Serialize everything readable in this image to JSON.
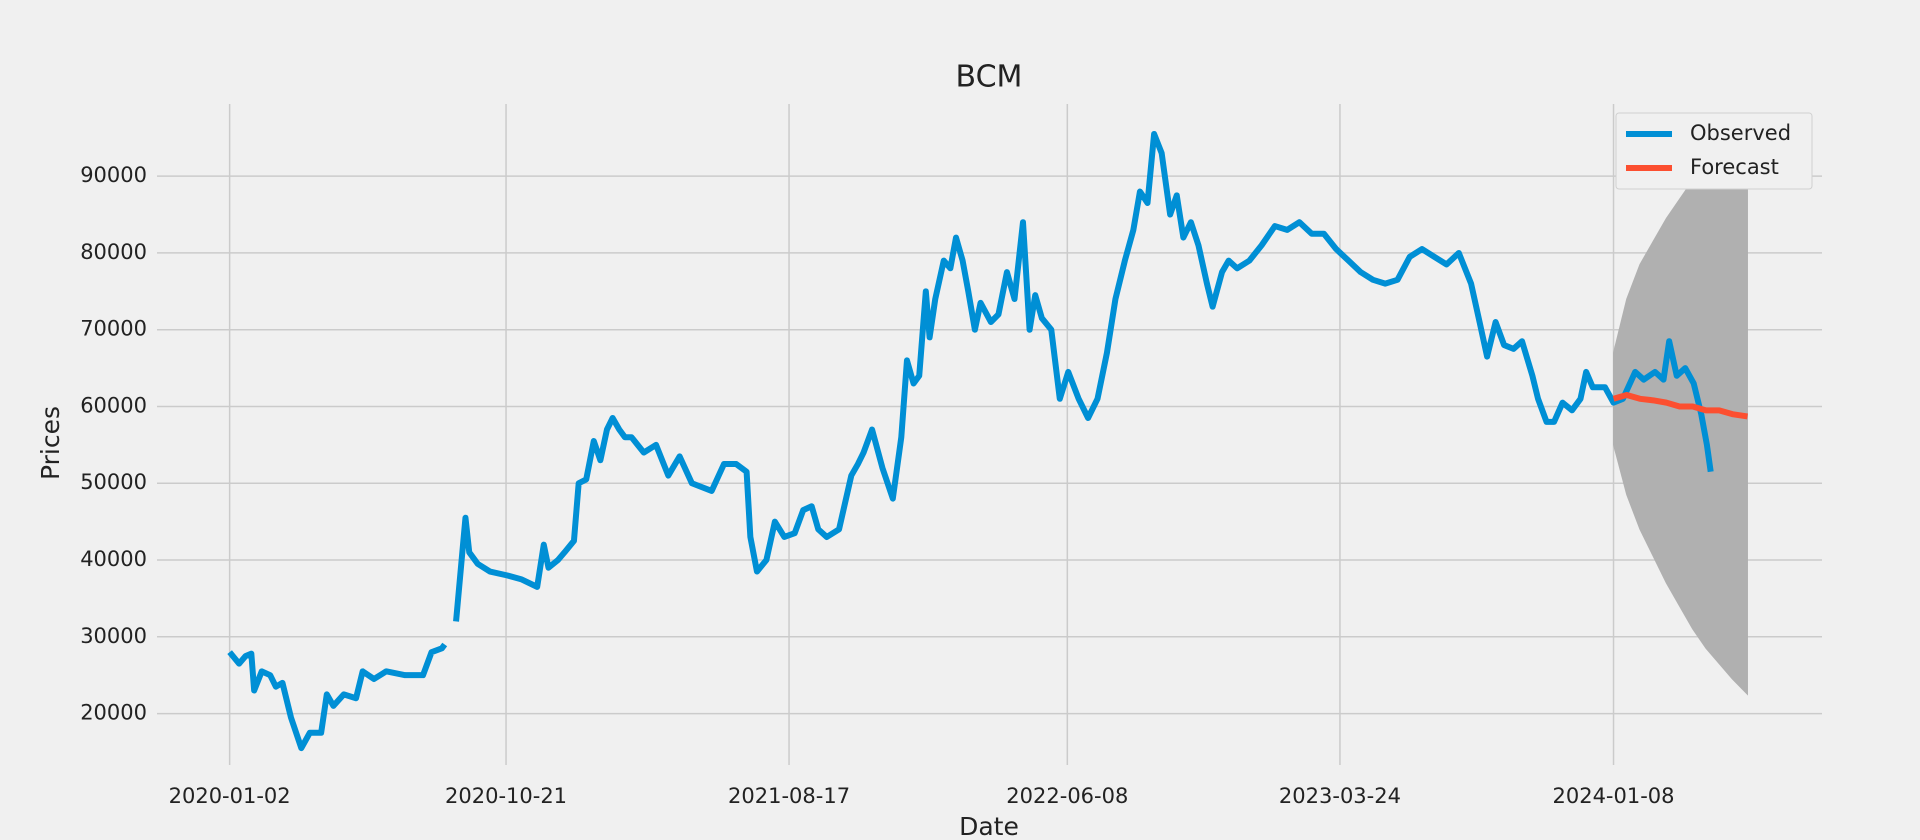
{
  "chart_data": {
    "type": "line",
    "title": "BCM",
    "x_label": "Date",
    "y_label": "Prices",
    "xlim": [
      "2019-10-17",
      "2024-08-16"
    ],
    "ylim": [
      13300,
      99400
    ],
    "xticks": [
      "2020-01-02",
      "2020-10-21",
      "2021-08-17",
      "2022-06-08",
      "2023-03-24",
      "2024-01-08"
    ],
    "yticks": [
      20000,
      30000,
      40000,
      50000,
      60000,
      70000,
      80000,
      90000
    ],
    "grid": true,
    "legend": "upper right",
    "series": [
      {
        "name": "Observed",
        "color": "#008fd5",
        "x": [
          "2020-01-02",
          "2020-01-12",
          "2020-01-19",
          "2020-01-25",
          "2020-01-28",
          "2020-02-05",
          "2020-02-14",
          "2020-02-20",
          "2020-02-27",
          "2020-03-07",
          "2020-03-18",
          "2020-03-27",
          "2020-04-08",
          "2020-04-14",
          "2020-04-21",
          "2020-05-02",
          "2020-05-15",
          "2020-05-22",
          "2020-06-03",
          "2020-06-16",
          "2020-07-06",
          "2020-07-25",
          "2020-08-03",
          "2020-08-14",
          "2020-08-17",
          "2020-08-22",
          "2020-08-29",
          "2020-09-08",
          "2020-09-12",
          "2020-09-21",
          "2020-10-04",
          "2020-10-22",
          "2020-11-06",
          "2020-11-23",
          "2020-11-30",
          "2020-12-05",
          "2020-12-15",
          "2020-12-22",
          "2021-01-01",
          "2021-01-06",
          "2021-01-14",
          "2021-01-22",
          "2021-01-29",
          "2021-02-05",
          "2021-02-11",
          "2021-02-18",
          "2021-02-24",
          "2021-03-03",
          "2021-03-16",
          "2021-03-29",
          "2021-04-11",
          "2021-04-23",
          "2021-05-06",
          "2021-05-27",
          "2021-06-09",
          "2021-06-22",
          "2021-07-03",
          "2021-07-07",
          "2021-07-14",
          "2021-07-24",
          "2021-08-02",
          "2021-08-12",
          "2021-08-23",
          "2021-09-01",
          "2021-09-10",
          "2021-09-17",
          "2021-09-26",
          "2021-10-09",
          "2021-10-22",
          "2021-10-29",
          "2021-11-04",
          "2021-11-13",
          "2021-11-24",
          "2021-12-05",
          "2021-12-14",
          "2021-12-20",
          "2021-12-27",
          "2022-01-02",
          "2022-01-09",
          "2022-01-13",
          "2022-01-19",
          "2022-01-28",
          "2022-02-04",
          "2022-02-10",
          "2022-02-17",
          "2022-02-23",
          "2022-03-02",
          "2022-03-08",
          "2022-03-19",
          "2022-03-27",
          "2022-04-05",
          "2022-04-13",
          "2022-04-22",
          "2022-04-29",
          "2022-05-05",
          "2022-05-12",
          "2022-05-22",
          "2022-05-31",
          "2022-06-09",
          "2022-06-20",
          "2022-06-30",
          "2022-07-10",
          "2022-07-20",
          "2022-07-29",
          "2022-08-08",
          "2022-08-17",
          "2022-08-24",
          "2022-09-01",
          "2022-09-08",
          "2022-09-16",
          "2022-09-25",
          "2022-10-02",
          "2022-10-09",
          "2022-10-17",
          "2022-10-25",
          "2022-11-03",
          "2022-11-09",
          "2022-11-19",
          "2022-11-26",
          "2022-12-05",
          "2022-12-18",
          "2022-12-31",
          "2023-01-14",
          "2023-01-27",
          "2023-02-09",
          "2023-02-22",
          "2023-03-07",
          "2023-03-20",
          "2023-04-02",
          "2023-04-15",
          "2023-04-28",
          "2023-05-11",
          "2023-05-24",
          "2023-06-06",
          "2023-06-19",
          "2023-07-02",
          "2023-07-15",
          "2023-07-28",
          "2023-08-10",
          "2023-08-19",
          "2023-08-27",
          "2023-09-05",
          "2023-09-14",
          "2023-09-24",
          "2023-10-03",
          "2023-10-14",
          "2023-10-20",
          "2023-10-29",
          "2023-11-06",
          "2023-11-15",
          "2023-11-25",
          "2023-12-04",
          "2023-12-10",
          "2023-12-17",
          "2023-12-30",
          "2024-01-08",
          "2024-01-18",
          "2024-01-31",
          "2024-02-09",
          "2024-02-21",
          "2024-03-01",
          "2024-03-07",
          "2024-03-15",
          "2024-03-24",
          "2024-04-02",
          "2024-04-10",
          "2024-04-16",
          "2024-04-20"
        ],
        "values": [
          28000,
          26500,
          27500,
          27800,
          23000,
          25500,
          25000,
          23500,
          24000,
          19500,
          15500,
          17500,
          17500,
          22500,
          21000,
          22500,
          22000,
          25500,
          24500,
          25500,
          25000,
          25000,
          28000,
          28500,
          29000,
          null,
          32000,
          45500,
          41000,
          39500,
          38500,
          38000,
          37500,
          36500,
          42000,
          39000,
          40000,
          41000,
          42500,
          50000,
          50500,
          55500,
          53000,
          57000,
          58500,
          57000,
          56000,
          56000,
          54000,
          55000,
          51000,
          53500,
          50000,
          49000,
          52500,
          52500,
          51500,
          43000,
          38500,
          40000,
          45000,
          43000,
          43500,
          46500,
          47000,
          44000,
          43000,
          44000,
          51000,
          52500,
          54000,
          57000,
          52000,
          48000,
          56000,
          66000,
          63000,
          64000,
          75000,
          69000,
          74000,
          79000,
          78000,
          82000,
          79000,
          75000,
          70000,
          73500,
          71000,
          72000,
          77500,
          74000,
          84000,
          70000,
          74500,
          71500,
          70000,
          61000,
          64500,
          61000,
          58500,
          61000,
          67000,
          74000,
          79000,
          83000,
          88000,
          86500,
          95500,
          93000,
          85000,
          87500,
          82000,
          84000,
          81000,
          76000,
          73000,
          77500,
          79000,
          78000,
          79000,
          81000,
          83500,
          83000,
          84000,
          82500,
          82500,
          80500,
          79000,
          77500,
          76500,
          76000,
          76500,
          79500,
          80500,
          79500,
          78500,
          80000,
          76000,
          71000,
          66500,
          71000,
          68000,
          67500,
          68500,
          64000,
          61000,
          58000,
          58000,
          60500,
          59500,
          61000,
          64500,
          62500,
          62500,
          60500,
          61000,
          64500,
          63500,
          64500,
          63500,
          68500,
          64000,
          65000,
          63000,
          59000,
          55000,
          51500
        ]
      },
      {
        "name": "Forecast",
        "color": "#fc4f30",
        "x": [
          "2024-01-08",
          "2024-01-22",
          "2024-02-05",
          "2024-02-19",
          "2024-03-04",
          "2024-03-18",
          "2024-04-01",
          "2024-04-15",
          "2024-04-29",
          "2024-05-13",
          "2024-05-29"
        ],
        "values": [
          61000,
          61500,
          61000,
          60800,
          60500,
          60000,
          60000,
          59500,
          59500,
          59000,
          58700
        ]
      }
    ],
    "interval": {
      "color": "#b0b0b0",
      "x": [
        "2024-01-08",
        "2024-01-22",
        "2024-02-05",
        "2024-02-19",
        "2024-03-04",
        "2024-03-18",
        "2024-04-01",
        "2024-04-15",
        "2024-04-29",
        "2024-05-13",
        "2024-05-29"
      ],
      "lower": [
        55000,
        48500,
        44000,
        40500,
        37000,
        34000,
        31000,
        28500,
        26500,
        24500,
        22500
      ],
      "upper": [
        67000,
        74000,
        78500,
        81500,
        84500,
        87000,
        89500,
        91500,
        93500,
        95500,
        97500
      ]
    }
  }
}
